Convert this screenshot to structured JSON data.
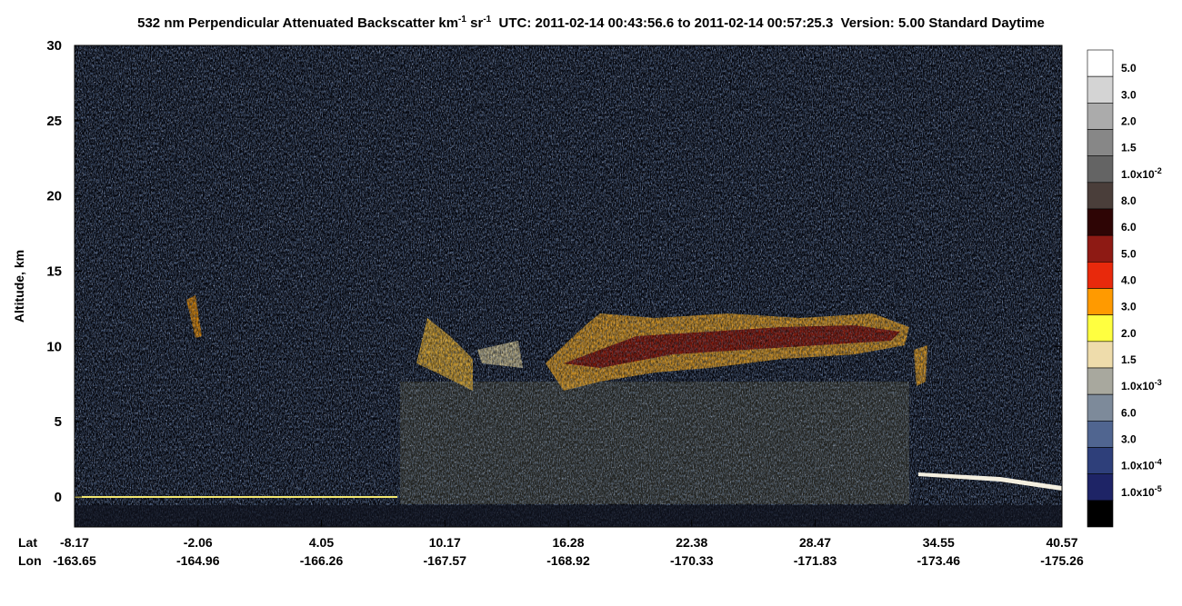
{
  "chart_data": {
    "type": "curtain",
    "title": {
      "main": "532 nm Perpendicular Attenuated Backscatter km",
      "exp1": "-1",
      "unit": " sr",
      "exp2": "-1",
      "info": "  UTC: 2011-02-14 00:43:56.6 to 2011-02-14 00:57:25.3  Version: 5.00 Standard Daytime"
    },
    "y_label": "Altitude, km",
    "ylim": [
      -2,
      30
    ],
    "yticks": [
      0,
      5,
      10,
      15,
      20,
      25,
      30
    ],
    "x_row_labels": [
      "Lat",
      "Lon"
    ],
    "lat": [
      -8.17,
      -2.06,
      4.05,
      10.17,
      16.28,
      22.38,
      28.47,
      34.55,
      40.57
    ],
    "lon": [
      -163.65,
      -164.96,
      -166.26,
      -167.57,
      -168.92,
      -170.33,
      -171.83,
      -173.46,
      -175.26
    ],
    "colorbar": {
      "colors": [
        "#ffffff",
        "#d4d4d4",
        "#ababab",
        "#878787",
        "#646464",
        "#4a3e3a",
        "#2e0505",
        "#8e1a14",
        "#e8290c",
        "#ff9a00",
        "#ffff40",
        "#eedcab",
        "#a8a89e",
        "#7d8a9a",
        "#506590",
        "#2e3f7a",
        "#1e2466",
        "#000000"
      ],
      "labels": [
        {
          "text": "5.0"
        },
        {
          "text": "3.0"
        },
        {
          "text": "2.0"
        },
        {
          "text": "1.5"
        },
        {
          "text": "1.0x10",
          "sup": "-2"
        },
        {
          "text": "8.0"
        },
        {
          "text": "6.0"
        },
        {
          "text": "5.0"
        },
        {
          "text": "4.0"
        },
        {
          "text": "3.0"
        },
        {
          "text": "2.0"
        },
        {
          "text": "1.5"
        },
        {
          "text": "1.0x10",
          "sup": "-3"
        },
        {
          "text": "6.0"
        },
        {
          "text": "3.0"
        },
        {
          "text": "1.0x10",
          "sup": "-4"
        },
        {
          "text": "1.0x10",
          "sup": "-5"
        }
      ]
    }
  }
}
